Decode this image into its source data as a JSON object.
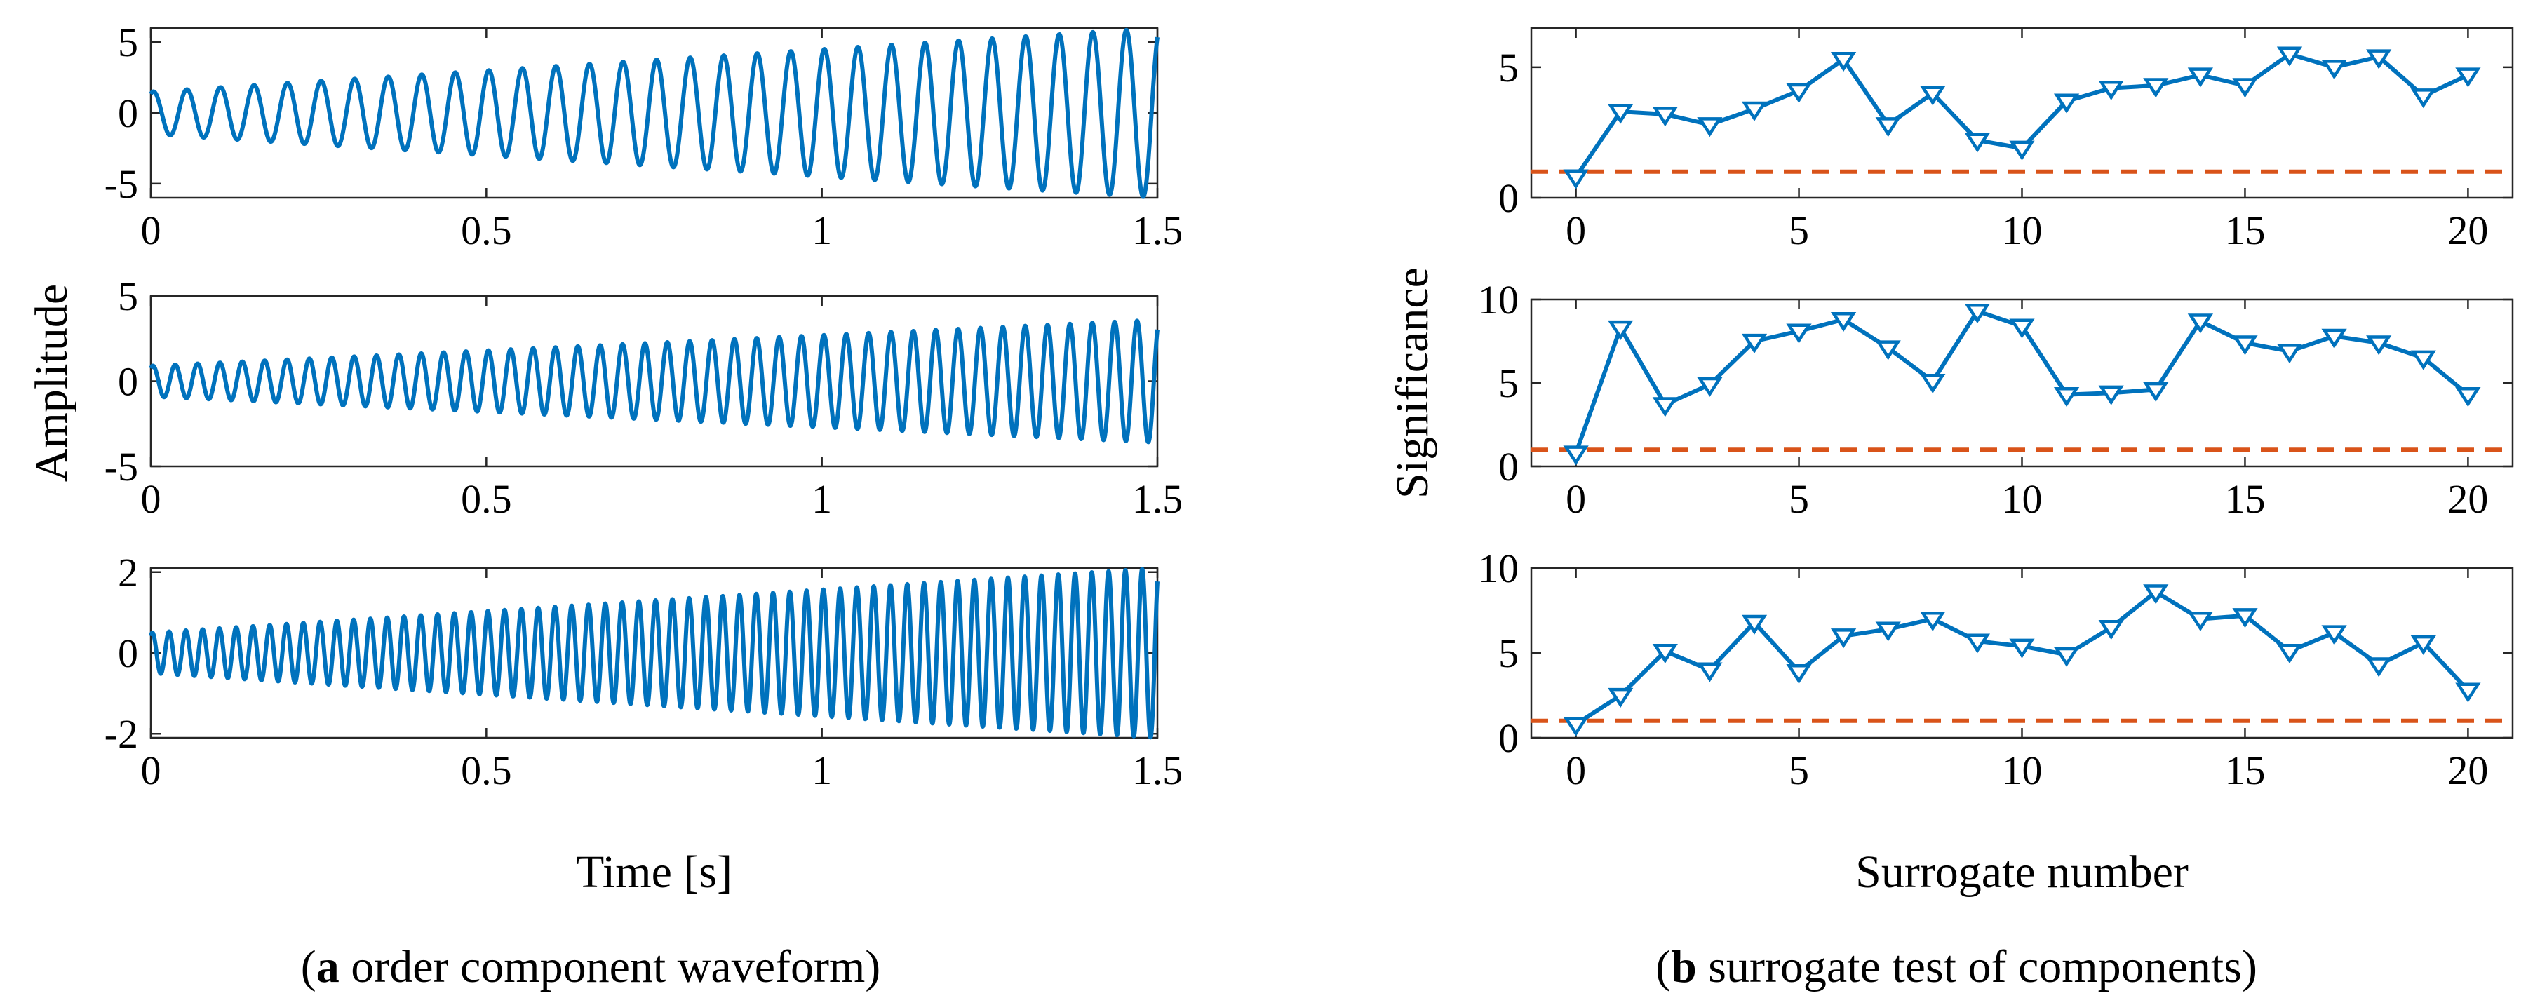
{
  "colors": {
    "signal": "#0072BD",
    "threshold": "#D95319",
    "axis": "#262626"
  },
  "caption_a": {
    "letter": "a",
    "text": " order component waveform"
  },
  "caption_b": {
    "letter": "b",
    "text": " surrogate test of components"
  },
  "chart_data": [
    {
      "type": "line",
      "panel": "a1",
      "x_range": [
        0,
        1.5
      ],
      "ylim": [
        -6,
        6
      ],
      "xticks": [
        "0",
        "0.5",
        "1",
        "1.5"
      ],
      "yticks": [
        {
          "v": 5,
          "label": "5"
        },
        {
          "v": 0,
          "label": "0"
        },
        {
          "v": -5,
          "label": "-5"
        }
      ],
      "signal": {
        "amp_start": 1.5,
        "amp_end": 6.0,
        "cycles": 30,
        "phase": 1.1
      },
      "xlabel": "",
      "ylabel": ""
    },
    {
      "type": "line",
      "panel": "a2",
      "x_range": [
        0,
        1.5
      ],
      "ylim": [
        -5,
        5
      ],
      "xticks": [
        "0",
        "0.5",
        "1",
        "1.5"
      ],
      "yticks": [
        {
          "v": 5,
          "label": "5"
        },
        {
          "v": 0,
          "label": "0"
        },
        {
          "v": -5,
          "label": "-5"
        }
      ],
      "signal": {
        "amp_start": 0.9,
        "amp_end": 3.6,
        "cycles": 45,
        "phase": 1.0
      },
      "xlabel": "",
      "ylabel": "Amplitude"
    },
    {
      "type": "line",
      "panel": "a3",
      "x_range": [
        0,
        1.5
      ],
      "ylim": [
        -2.1,
        2.1
      ],
      "xticks": [
        "0",
        "0.5",
        "1",
        "1.5"
      ],
      "yticks": [
        {
          "v": 2,
          "label": "2"
        },
        {
          "v": 0,
          "label": "0"
        },
        {
          "v": -2,
          "label": "-2"
        }
      ],
      "signal": {
        "amp_start": 0.5,
        "amp_end": 2.1,
        "cycles": 60,
        "phase": 1.0
      },
      "xlabel": "Time [s]",
      "ylabel": ""
    },
    {
      "type": "line",
      "panel": "b1",
      "x": [
        0,
        1,
        2,
        3,
        4,
        5,
        6,
        7,
        8,
        9,
        10,
        11,
        12,
        13,
        14,
        15,
        16,
        17,
        18,
        19,
        20
      ],
      "values": [
        0.8,
        3.3,
        3.2,
        2.8,
        3.4,
        4.1,
        5.3,
        2.8,
        4.0,
        2.2,
        1.9,
        3.7,
        4.2,
        4.3,
        4.7,
        4.3,
        5.5,
        5.0,
        5.4,
        3.9,
        4.7
      ],
      "threshold": 1,
      "xlim": [
        -1,
        21
      ],
      "ylim": [
        0,
        6.5
      ],
      "xticks": [
        "0",
        "5",
        "10",
        "15",
        "20"
      ],
      "yticks": [
        {
          "v": 5,
          "label": "5"
        },
        {
          "v": 0,
          "label": "0"
        }
      ],
      "xlabel": "",
      "ylabel": ""
    },
    {
      "type": "line",
      "panel": "b2",
      "x": [
        0,
        1,
        2,
        3,
        4,
        5,
        6,
        7,
        8,
        9,
        10,
        11,
        12,
        13,
        14,
        15,
        16,
        17,
        18,
        19,
        20
      ],
      "values": [
        0.8,
        8.3,
        3.7,
        4.9,
        7.5,
        8.1,
        8.8,
        7.1,
        5.1,
        9.3,
        8.4,
        4.3,
        4.4,
        4.6,
        8.7,
        7.4,
        6.9,
        7.8,
        7.4,
        6.5,
        4.3
      ],
      "threshold": 1,
      "xlim": [
        -1,
        21
      ],
      "ylim": [
        0,
        10
      ],
      "xticks": [
        "0",
        "5",
        "10",
        "15",
        "20"
      ],
      "yticks": [
        {
          "v": 10,
          "label": "10"
        },
        {
          "v": 5,
          "label": "5"
        },
        {
          "v": 0,
          "label": "0"
        }
      ],
      "xlabel": "",
      "ylabel": "Significance"
    },
    {
      "type": "line",
      "panel": "b3",
      "x": [
        0,
        1,
        2,
        3,
        4,
        5,
        6,
        7,
        8,
        9,
        10,
        11,
        12,
        13,
        14,
        15,
        16,
        17,
        18,
        19,
        20
      ],
      "values": [
        0.8,
        2.5,
        5.1,
        4.0,
        6.8,
        3.9,
        6.0,
        6.4,
        7.0,
        5.7,
        5.4,
        4.9,
        6.5,
        8.6,
        7.0,
        7.2,
        5.1,
        6.2,
        4.3,
        5.6,
        2.8
      ],
      "threshold": 1,
      "xlim": [
        -1,
        21
      ],
      "ylim": [
        0,
        10
      ],
      "xticks": [
        "0",
        "5",
        "10",
        "15",
        "20"
      ],
      "yticks": [
        {
          "v": 10,
          "label": "10"
        },
        {
          "v": 5,
          "label": "5"
        },
        {
          "v": 0,
          "label": "0"
        }
      ],
      "xlabel": "Surrogate number",
      "ylabel": ""
    }
  ]
}
